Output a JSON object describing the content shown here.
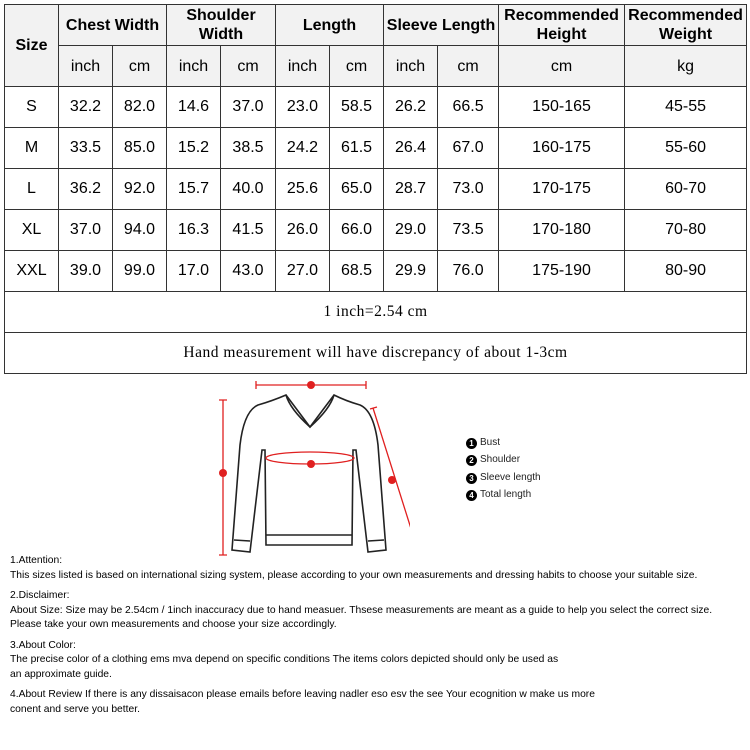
{
  "table": {
    "groups": [
      "Size",
      "Chest Width",
      "Shoulder Width",
      "Length",
      "Sleeve Length",
      "Recommended Height",
      "Recommended Weight"
    ],
    "units": [
      "inch",
      "cm",
      "inch",
      "cm",
      "inch",
      "cm",
      "inch",
      "cm",
      "cm",
      "kg"
    ],
    "rows": [
      [
        "S",
        "32.2",
        "82.0",
        "14.6",
        "37.0",
        "23.0",
        "58.5",
        "26.2",
        "66.5",
        "150-165",
        "45-55"
      ],
      [
        "M",
        "33.5",
        "85.0",
        "15.2",
        "38.5",
        "24.2",
        "61.5",
        "26.4",
        "67.0",
        "160-175",
        "55-60"
      ],
      [
        "L",
        "36.2",
        "92.0",
        "15.7",
        "40.0",
        "25.6",
        "65.0",
        "28.7",
        "73.0",
        "170-175",
        "60-70"
      ],
      [
        "XL",
        "37.0",
        "94.0",
        "16.3",
        "41.5",
        "26.0",
        "66.0",
        "29.0",
        "73.5",
        "170-180",
        "70-80"
      ],
      [
        "XXL",
        "39.0",
        "99.0",
        "17.0",
        "43.0",
        "27.0",
        "68.5",
        "29.9",
        "76.0",
        "175-190",
        "80-90"
      ]
    ],
    "note1": "1 inch=2.54 cm",
    "note2": "Hand measurement will have discrepancy of about 1-3cm"
  },
  "diagram": {
    "accent": "#e02020",
    "legend": [
      {
        "num": "1",
        "label": "Bust"
      },
      {
        "num": "2",
        "label": "Shoulder"
      },
      {
        "num": "3",
        "label": "Sleeve length"
      },
      {
        "num": "4",
        "label": "Total length"
      }
    ]
  },
  "notes": [
    {
      "title": "1.Attention:",
      "lines": [
        "This sizes listed is based on international sizing system, please according to your own measurements and dressing habits to choose your suitable size."
      ]
    },
    {
      "title": "2.Disclaimer:",
      "lines": [
        "About Size: Size may be 2.54cm / 1inch inaccuracy due to hand measuer. Thsese measurements are meant as a guide to help you select the correct size.",
        "Please take your own measurements and choose your size accordingly."
      ]
    },
    {
      "title": "3.About Color:",
      "lines": [
        "The precise color of a clothing ems mva depend on specific conditions The items colors depicted should only be used as",
        "an approximate guide."
      ]
    },
    {
      "title": "4.About Review If there is any dissaisacon please emails before leaving nadler eso esv the see Your ecognition w make us more",
      "lines": [
        "conent and serve you better."
      ]
    }
  ]
}
